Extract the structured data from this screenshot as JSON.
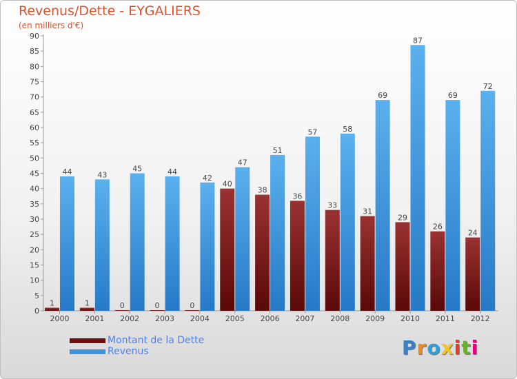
{
  "title": "Revenus/Dette - EYGALIERS",
  "subtitle": "(en milliers d'€)",
  "logo": {
    "text": "Proxiti",
    "colors": [
      "#3a7fc8",
      "#f08a1c",
      "#2ea0d8",
      "#f3c51e",
      "#e83a27",
      "#69b02b",
      "#e6007e"
    ]
  },
  "colors": {
    "title": "#d9532b",
    "dette": "#6e0d0d",
    "revenus": "#3d95dc",
    "legend_text": "#4f81f0"
  },
  "chart_data": {
    "type": "bar",
    "title": "Revenus/Dette - EYGALIERS",
    "ylabel": "(en milliers d'€)",
    "xlabel": "",
    "ylim": [
      0,
      90
    ],
    "yticks": [
      0,
      5,
      10,
      15,
      20,
      25,
      30,
      35,
      40,
      45,
      50,
      55,
      60,
      65,
      70,
      75,
      80,
      85,
      90
    ],
    "grid": false,
    "legend_position": "bottom-left",
    "categories": [
      "2000",
      "2001",
      "2002",
      "2003",
      "2004",
      "2005",
      "2006",
      "2007",
      "2008",
      "2009",
      "2010",
      "2011",
      "2012"
    ],
    "series": [
      {
        "name": "Montant de la Dette",
        "color": "#6e0d0d",
        "values": [
          1,
          1,
          0,
          0,
          0,
          40,
          38,
          36,
          33,
          31,
          29,
          26,
          24
        ]
      },
      {
        "name": "Revenus",
        "color": "#3d95dc",
        "values": [
          44,
          43,
          45,
          44,
          42,
          47,
          51,
          57,
          58,
          69,
          87,
          69,
          72
        ]
      }
    ]
  }
}
